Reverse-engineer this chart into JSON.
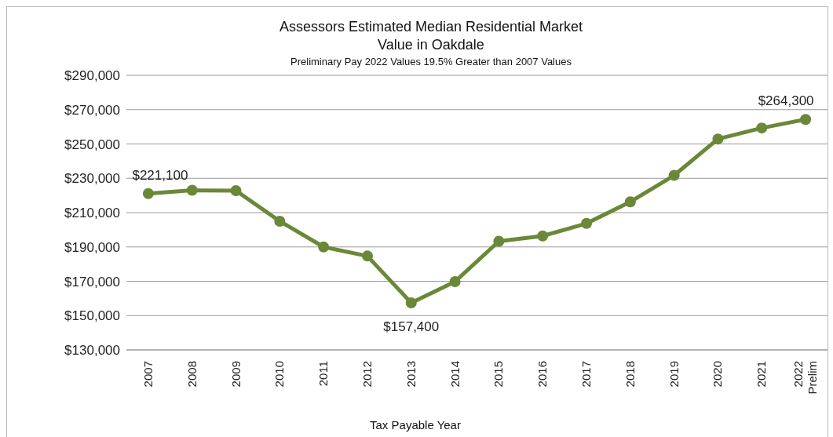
{
  "chart_data": {
    "type": "line",
    "title": "Assessors Estimated Median Residential Market Value in Oakdale",
    "subtitle": "Preliminary Pay 2022 Values 19.5% Greater than 2007 Values",
    "xlabel": "Tax Payable Year",
    "categories": [
      "2007",
      "2008",
      "2009",
      "2010",
      "2011",
      "2012",
      "2013",
      "2014",
      "2015",
      "2016",
      "2017",
      "2018",
      "2019",
      "2020",
      "2021",
      "2022 Prelim"
    ],
    "series": [
      {
        "color": "#6b8839",
        "values": [
          221100,
          223000,
          222800,
          205000,
          190000,
          184700,
          157400,
          169800,
          193300,
          196400,
          203700,
          216300,
          231700,
          252900,
          259300,
          264300
        ],
        "value_labels": [
          "$221,100",
          null,
          null,
          null,
          null,
          null,
          "$157,400",
          null,
          null,
          null,
          null,
          null,
          null,
          null,
          null,
          "$264,300"
        ]
      }
    ],
    "ylim": [
      130000,
      290000
    ],
    "yticks": [
      {
        "value": 130000,
        "label": "$130,000"
      },
      {
        "value": 150000,
        "label": "$150,000"
      },
      {
        "value": 170000,
        "label": "$170,000"
      },
      {
        "value": 190000,
        "label": "$190,000"
      },
      {
        "value": 210000,
        "label": "$210,000"
      },
      {
        "value": 230000,
        "label": "$230,000"
      },
      {
        "value": 250000,
        "label": "$250,000"
      },
      {
        "value": 270000,
        "label": "$270,000"
      },
      {
        "value": 290000,
        "label": "$290,000"
      }
    ],
    "grid": "y",
    "marker": "circle",
    "line_style": "solid"
  }
}
